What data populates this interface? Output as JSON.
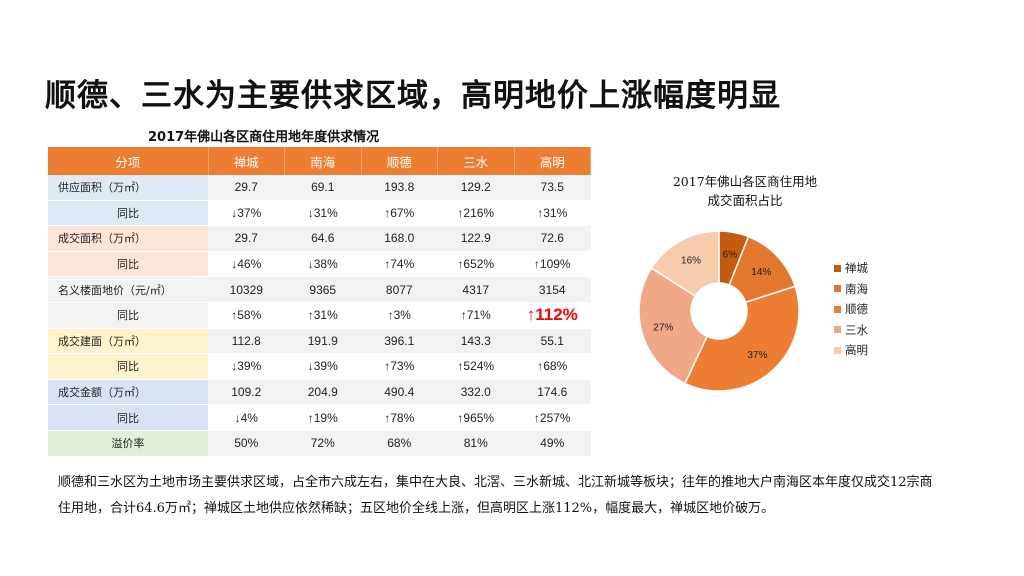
{
  "title": "顺德、三水为主要供求区域，高明地价上涨幅度明显",
  "table": {
    "title": "2017年佛山各区商住用地年度供求情况",
    "headers": [
      "分项",
      "禅城",
      "南海",
      "顺德",
      "三水",
      "高明"
    ],
    "rows": [
      {
        "label": "供应面积（万㎡）",
        "values": [
          "29.7",
          "69.1",
          "193.8",
          "129.2",
          "73.5"
        ],
        "label_bg": "#DEEBF7",
        "sub": false
      },
      {
        "label": "同比",
        "values": [
          "↓37%",
          "↓31%",
          "↑67%",
          "↑216%",
          "↑31%"
        ],
        "label_bg": "#DEEBF7",
        "sub": true
      },
      {
        "label": "成交面积（万㎡）",
        "values": [
          "29.7",
          "64.6",
          "168.0",
          "122.9",
          "72.6"
        ],
        "label_bg": "#FBE5D6",
        "sub": false
      },
      {
        "label": "同比",
        "values": [
          "↓46%",
          "↓38%",
          "↑74%",
          "↑652%",
          "↑109%"
        ],
        "label_bg": "#FBE5D6",
        "sub": true
      },
      {
        "label": "名义楼面地价（元/㎡）",
        "values": [
          "10329",
          "9365",
          "8077",
          "4317",
          "3154"
        ],
        "label_bg": "#F2F2F2",
        "sub": false
      },
      {
        "label": "同比",
        "values": [
          "↑58%",
          "↑31%",
          "↑3%",
          "↑71%",
          "↑112%"
        ],
        "label_bg": "#F2F2F2",
        "sub": true
      },
      {
        "label": "成交建面（万㎡）",
        "values": [
          "112.8",
          "191.9",
          "396.1",
          "143.3",
          "55.1"
        ],
        "label_bg": "#FFF2CC",
        "sub": false
      },
      {
        "label": "同比",
        "values": [
          "↓39%",
          "↓39%",
          "↑73%",
          "↑524%",
          "↑68%"
        ],
        "label_bg": "#FFF2CC",
        "sub": true
      },
      {
        "label": "成交金额（万㎡）",
        "values": [
          "109.2",
          "204.9",
          "490.4",
          "332.0",
          "174.6"
        ],
        "label_bg": "#DAE3F3",
        "sub": false
      },
      {
        "label": "同比",
        "values": [
          "↓4%",
          "↑19%",
          "↑78%",
          "↑965%",
          "↑257%"
        ],
        "label_bg": "#DAE3F3",
        "sub": true
      },
      {
        "label": "溢价率",
        "values": [
          "50%",
          "72%",
          "68%",
          "81%",
          "49%"
        ],
        "label_bg": "#E2EFDA",
        "sub": true
      }
    ],
    "highlight_value": "↑112%",
    "highlight_color": "#FF0000",
    "header_color": "#ED7D31"
  },
  "chart_data": {
    "type": "pie",
    "title": "2017年佛山各区商住用地成交面积占比",
    "title_lines": [
      "2017年佛山各区商住用地",
      "成交面积占比"
    ],
    "categories": [
      "禅城",
      "南海",
      "顺德",
      "三水",
      "高明"
    ],
    "values": [
      6,
      14,
      37,
      27,
      16
    ],
    "labels": [
      "6%",
      "14%",
      "37%",
      "27%",
      "16%"
    ],
    "colors": [
      "#C55A11",
      "#E3772E",
      "#ED7D31",
      "#F1A886",
      "#F8CBAD"
    ],
    "donut": true,
    "legend": "right"
  },
  "paragraph": "顺德和三水区为土地市场主要供求区域，占全市六成左右，集中在大良、北滘、三水新城、北江新城等板块；往年的推地大户南海区本年度仅成交12宗商住用地，合计64.6万㎡；禅城区土地供应依然稀缺；五区地价全线上涨，但高明区上涨112%，幅度最大，禅城区地价破万。"
}
